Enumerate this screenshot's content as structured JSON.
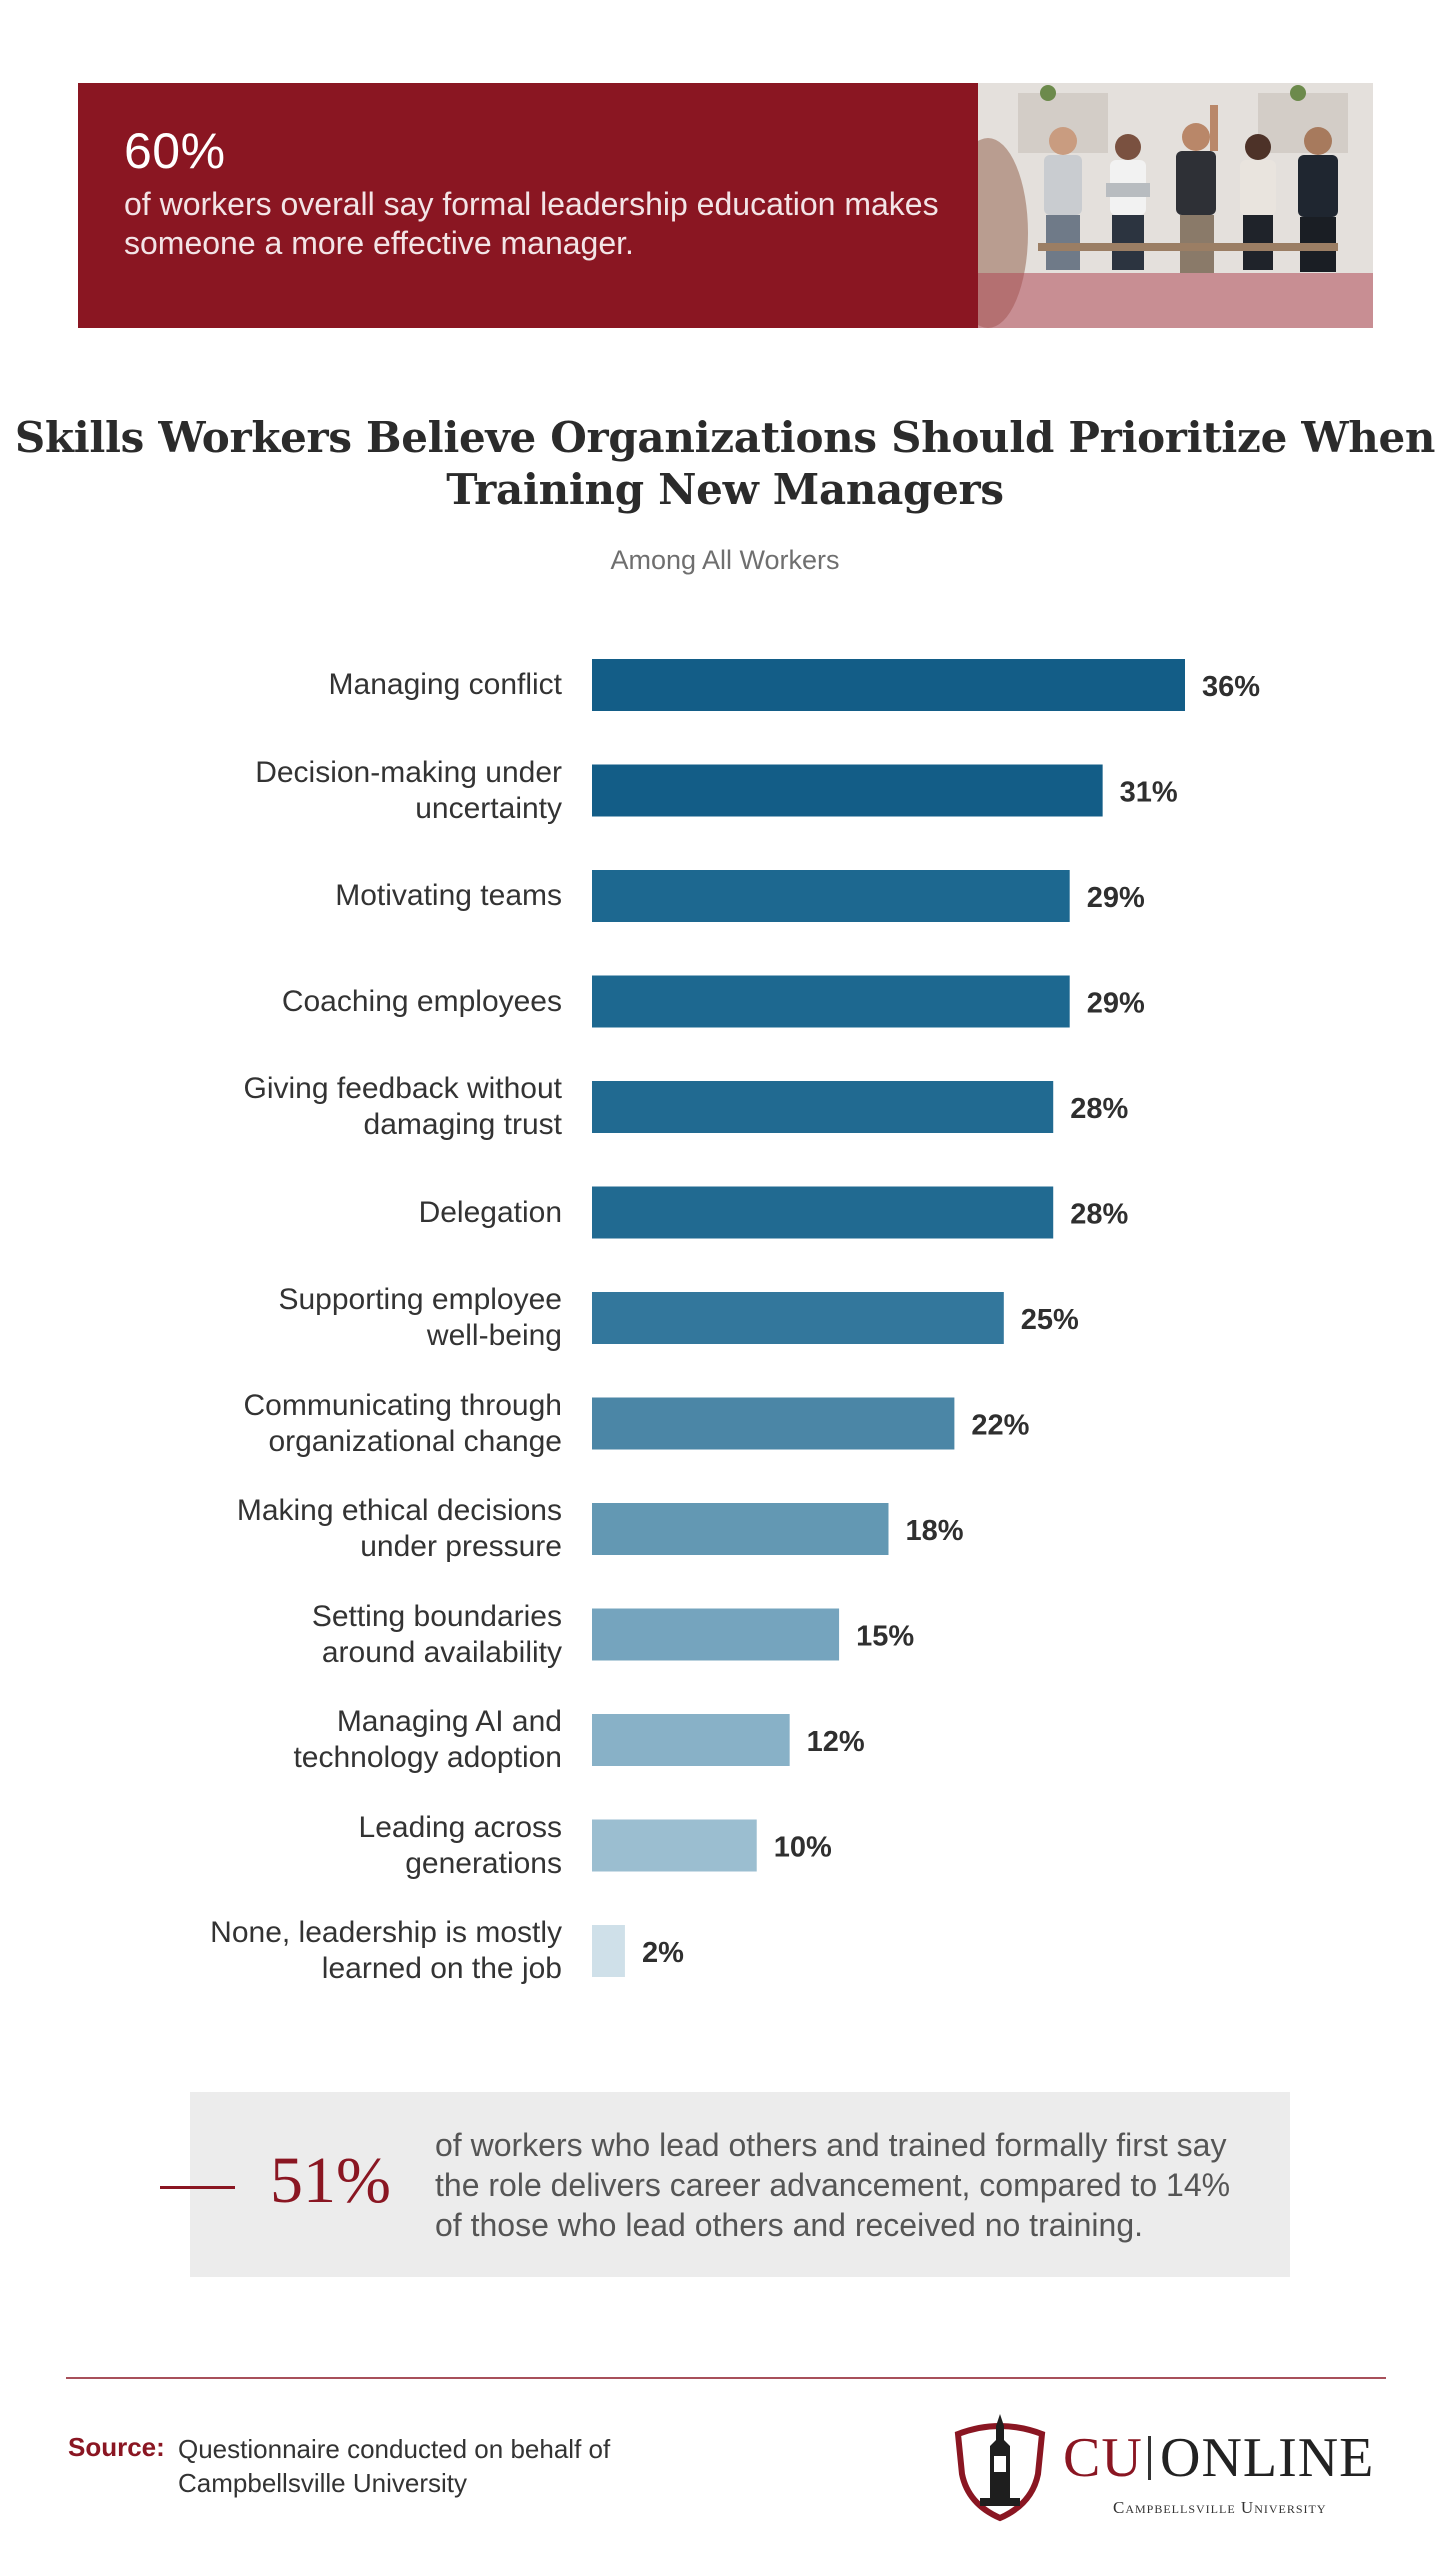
{
  "banner": {
    "stat": "60%",
    "description": "of workers overall say formal leadership education makes someone a more effective manager.",
    "background_color": "#8a1622",
    "photo": "people-seated-in-office-photo"
  },
  "chart_data": {
    "type": "bar",
    "orientation": "horizontal",
    "title": "Skills Workers Believe Organizations Should Prioritize When Training New Managers",
    "subtitle": "Among All Workers",
    "categories": [
      "Managing conflict",
      "Decision-making under\nuncertainty",
      "Motivating teams",
      "Coaching employees",
      "Giving feedback without\ndamaging trust",
      "Delegation",
      "Supporting employee\nwell-being",
      "Communicating through\norganizational change",
      "Making ethical decisions\nunder pressure",
      "Setting boundaries\naround availability",
      "Managing AI and\ntechnology adoption",
      "Leading across\ngenerations",
      "None, leadership is mostly\nlearned on the job"
    ],
    "values": [
      36,
      31,
      29,
      29,
      28,
      28,
      25,
      22,
      18,
      15,
      12,
      10,
      2
    ],
    "value_labels": [
      "36%",
      "31%",
      "29%",
      "29%",
      "28%",
      "28%",
      "25%",
      "22%",
      "18%",
      "15%",
      "12%",
      "10%",
      "2%"
    ],
    "unit": "%",
    "xlim": [
      0,
      36
    ],
    "grid": false,
    "legend": "none",
    "bar_colors": [
      "#135d87",
      "#135d87",
      "#1d6890",
      "#1d6890",
      "#216a91",
      "#216a91",
      "#33779c",
      "#4b86a6",
      "#6398b3",
      "#75a4be",
      "#88b1c7",
      "#9bbed0",
      "#cfe0e9"
    ]
  },
  "callout": {
    "stat": "51%",
    "text": "of workers who lead others and trained formally first say the role delivers career advancement, compared to 14% of those who lead others and received no training.",
    "accent_color": "#8a1622"
  },
  "footer": {
    "source_label": "Source:",
    "source_text": "Questionnaire conducted on behalf of Campbellsville University",
    "logo": {
      "cu": "CU",
      "online": "ONLINE",
      "university": "Campbellsville University",
      "icon": "tower-shield-icon"
    }
  }
}
